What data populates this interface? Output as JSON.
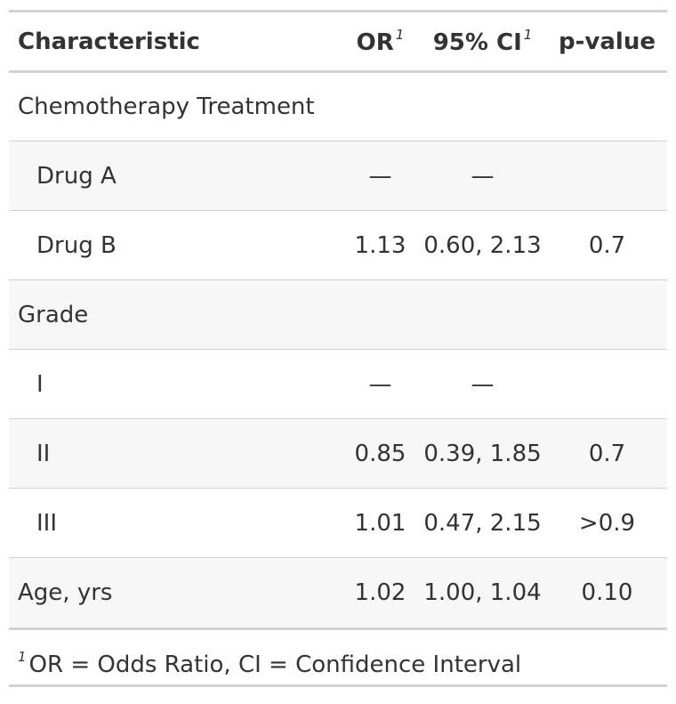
{
  "table": {
    "header": [
      {
        "label": "Characteristic"
      },
      {
        "label": "OR",
        "footnote_mark": "1"
      },
      {
        "label": "95% CI",
        "footnote_mark": "1"
      },
      {
        "label": "p-value"
      }
    ],
    "variables": [
      {
        "label": "Chemotherapy Treatment",
        "levels": [
          {
            "label": "Drug A",
            "cells": [
              "—",
              "—"
            ]
          },
          {
            "label": "Drug B",
            "cells": [
              "1.13",
              "0.60, 2.13",
              "0.7"
            ]
          }
        ]
      },
      {
        "label": "Grade",
        "levels": [
          {
            "label": "I",
            "cells": [
              "—",
              "—"
            ]
          },
          {
            "label": "II",
            "cells": [
              "0.85",
              "0.39, 1.85",
              "0.7"
            ]
          },
          {
            "label": "III",
            "cells": [
              "1.01",
              "0.47, 2.15",
              ">0.9"
            ]
          }
        ]
      },
      {
        "label": "Age, yrs",
        "cells": [
          "1.02",
          "1.00, 1.04",
          "0.10"
        ]
      }
    ]
  },
  "footnote": {
    "mark": "1",
    "text": "OR = Odds Ratio, CI = Confidence Interval"
  }
}
